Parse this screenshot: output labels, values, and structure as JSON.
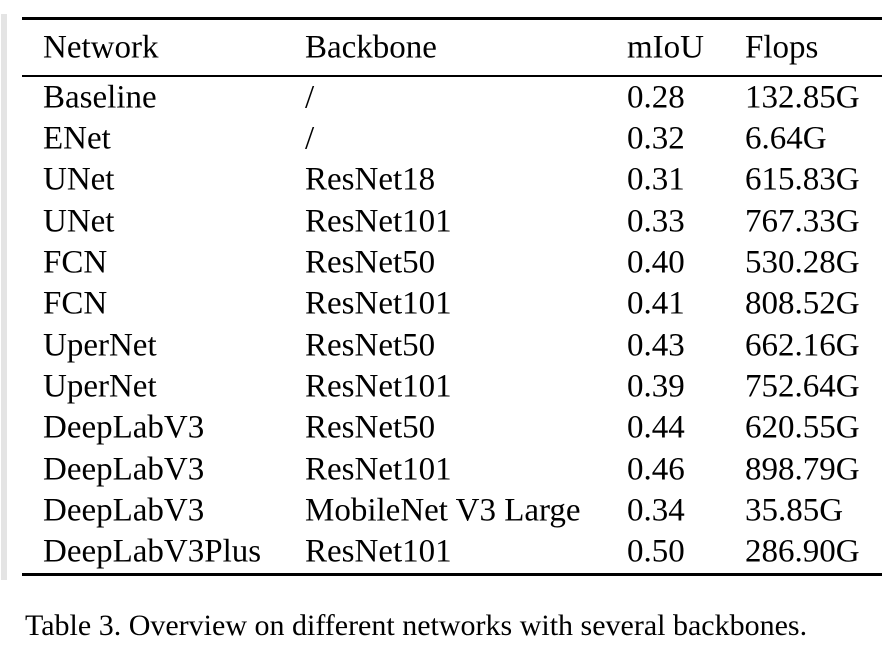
{
  "table": {
    "columns": [
      "Network",
      "Backbone",
      "mIoU",
      "Flops"
    ],
    "rows": [
      [
        "Baseline",
        "/",
        "0.28",
        "132.85G"
      ],
      [
        "ENet",
        "/",
        "0.32",
        "6.64G"
      ],
      [
        "UNet",
        "ResNet18",
        "0.31",
        "615.83G"
      ],
      [
        "UNet",
        "ResNet101",
        "0.33",
        "767.33G"
      ],
      [
        "FCN",
        "ResNet50",
        "0.40",
        "530.28G"
      ],
      [
        "FCN",
        "ResNet101",
        "0.41",
        "808.52G"
      ],
      [
        "UperNet",
        "ResNet50",
        "0.43",
        "662.16G"
      ],
      [
        "UperNet",
        "ResNet101",
        "0.39",
        "752.64G"
      ],
      [
        "DeepLabV3",
        "ResNet50",
        "0.44",
        "620.55G"
      ],
      [
        "DeepLabV3",
        "ResNet101",
        "0.46",
        "898.79G"
      ],
      [
        "DeepLabV3",
        "MobileNet V3 Large",
        "0.34",
        "35.85G"
      ],
      [
        "DeepLabV3Plus",
        "ResNet101",
        "0.50",
        "286.90G"
      ]
    ]
  },
  "caption": "Table 3. Overview on different networks with several backbones.",
  "colors": {
    "text": "#000000",
    "rule": "#000000",
    "background": "#ffffff"
  }
}
